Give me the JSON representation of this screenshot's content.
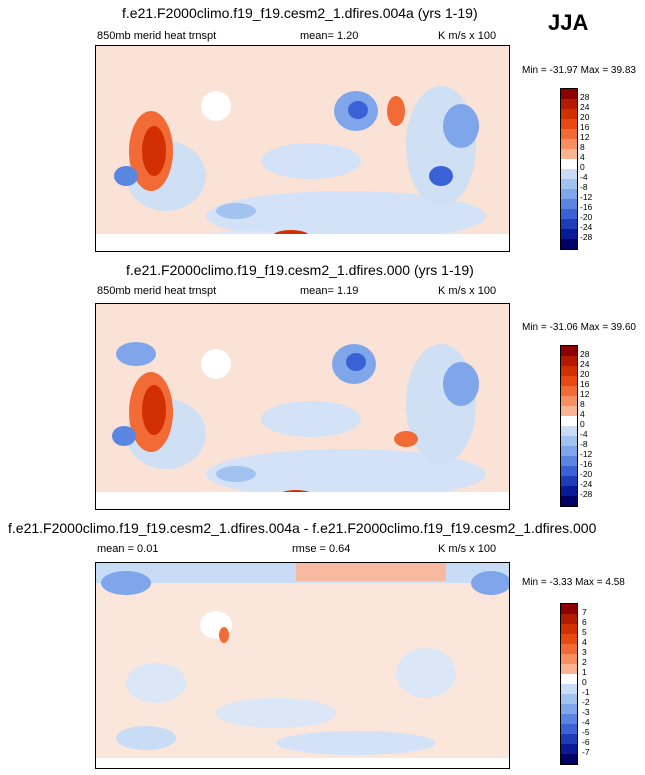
{
  "season": "JJA",
  "panels": [
    {
      "title": "f.e21.F2000climo.f19_f19.cesm2_1.dfires.004a (yrs 1-19)",
      "left_label": "850mb merid heat trnspt",
      "mid_label": "mean=   1.20",
      "units": "K m/s x 100",
      "minmax": "Min = -31.97 Max =  39.83"
    },
    {
      "title": "f.e21.F2000climo.f19_f19.cesm2_1.dfires.000 (yrs 1-19)",
      "left_label": "850mb merid heat trnspt",
      "mid_label": "mean=   1.19",
      "units": "K m/s x 100",
      "minmax": "Min = -31.06 Max =  39.60"
    },
    {
      "title": "f.e21.F2000climo.f19_f19.cesm2_1.dfires.004a - f.e21.F2000climo.f19_f19.cesm2_1.dfires.000",
      "left_label": "mean =   0.01",
      "mid_label": "rmse =   0.64",
      "units": "K m/s x 100",
      "minmax": "Min =  -3.33 Max =   4.58"
    }
  ],
  "chart_data": [
    {
      "type": "heatmap",
      "colorbar_levels": [
        "28",
        "24",
        "20",
        "16",
        "12",
        "8",
        "4",
        "0",
        "-4",
        "-8",
        "-12",
        "-16",
        "-20",
        "-24",
        "-28"
      ],
      "colors": [
        "#8b0000",
        "#b31b00",
        "#d33000",
        "#e64a10",
        "#f26a35",
        "#f7905e",
        "#fab493",
        "#ffffff",
        "#c8dcf5",
        "#a2c2f0",
        "#7fa6ea",
        "#5a86e2",
        "#3a62d6",
        "#1e3cb8",
        "#0a1a96",
        "#000066"
      ]
    },
    {
      "type": "heatmap",
      "colorbar_levels": [
        "28",
        "24",
        "20",
        "16",
        "12",
        "8",
        "4",
        "0",
        "-4",
        "-8",
        "-12",
        "-16",
        "-20",
        "-24",
        "-28"
      ],
      "colors": [
        "#8b0000",
        "#b31b00",
        "#d33000",
        "#e64a10",
        "#f26a35",
        "#f7905e",
        "#fab493",
        "#ffffff",
        "#c8dcf5",
        "#a2c2f0",
        "#7fa6ea",
        "#5a86e2",
        "#3a62d6",
        "#1e3cb8",
        "#0a1a96",
        "#000066"
      ]
    },
    {
      "type": "heatmap",
      "colorbar_levels": [
        "7",
        "6",
        "5",
        "4",
        "3",
        "2",
        "1",
        "0",
        "-1",
        "-2",
        "-3",
        "-4",
        "-5",
        "-6",
        "-7"
      ],
      "colors": [
        "#8b0000",
        "#b31b00",
        "#d33000",
        "#e64a10",
        "#f26a35",
        "#f7905e",
        "#fab493",
        "#ffffff",
        "#c8dcf5",
        "#a2c2f0",
        "#7fa6ea",
        "#5a86e2",
        "#3a62d6",
        "#1e3cb8",
        "#0a1a96",
        "#000066"
      ]
    }
  ]
}
